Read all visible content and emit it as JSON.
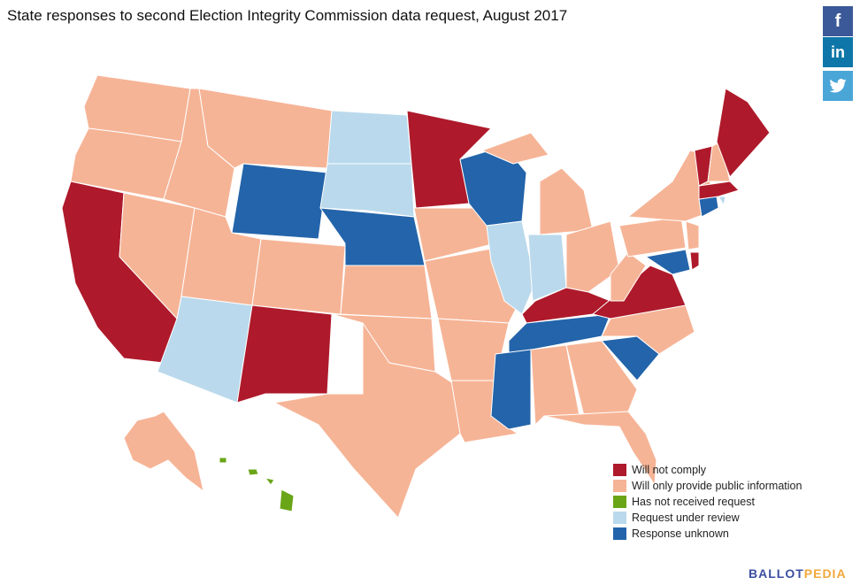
{
  "title": "State responses to second Election Integrity Commission data request, August 2017",
  "social": {
    "facebook": "f",
    "linkedin": "in",
    "twitter": "🐦"
  },
  "categories": {
    "refuse": {
      "label": "Will not comply",
      "color": "#ae1a2b"
    },
    "public": {
      "label": "Will only provide public information",
      "color": "#f6b496"
    },
    "none": {
      "label": "Has not received request",
      "color": "#6aa517"
    },
    "review": {
      "label": "Request under review",
      "color": "#bad9ec"
    },
    "unknown": {
      "label": "Response unknown",
      "color": "#2364aa"
    }
  },
  "legend_order": [
    "refuse",
    "public",
    "none",
    "review",
    "unknown"
  ],
  "states": {
    "CA": "refuse",
    "NM": "refuse",
    "MN": "refuse",
    "KY": "refuse",
    "VA": "refuse",
    "DE": "refuse",
    "VT": "refuse",
    "ME": "refuse",
    "MA": "refuse",
    "WA": "public",
    "OR": "public",
    "ID": "public",
    "MT": "public",
    "NV": "public",
    "UT": "public",
    "CO": "public",
    "KS": "public",
    "OK": "public",
    "TX": "public",
    "IA": "public",
    "MO": "public",
    "AR": "public",
    "LA": "public",
    "MI": "public",
    "OH": "public",
    "WV": "public",
    "PA": "public",
    "NY": "public",
    "NJ": "public",
    "NH": "public",
    "NC": "public",
    "GA": "public",
    "AL": "public",
    "FL": "public",
    "AK": "public",
    "HI": "none",
    "ND": "review",
    "SD": "review",
    "AZ": "review",
    "IL": "review",
    "IN": "review",
    "RI": "review",
    "WY": "unknown",
    "NE": "unknown",
    "WI": "unknown",
    "TN": "unknown",
    "MS": "unknown",
    "SC": "unknown",
    "CT": "unknown",
    "MD": "unknown"
  },
  "logo": {
    "part1": "BALLOT",
    "part2": "PEDIA"
  }
}
